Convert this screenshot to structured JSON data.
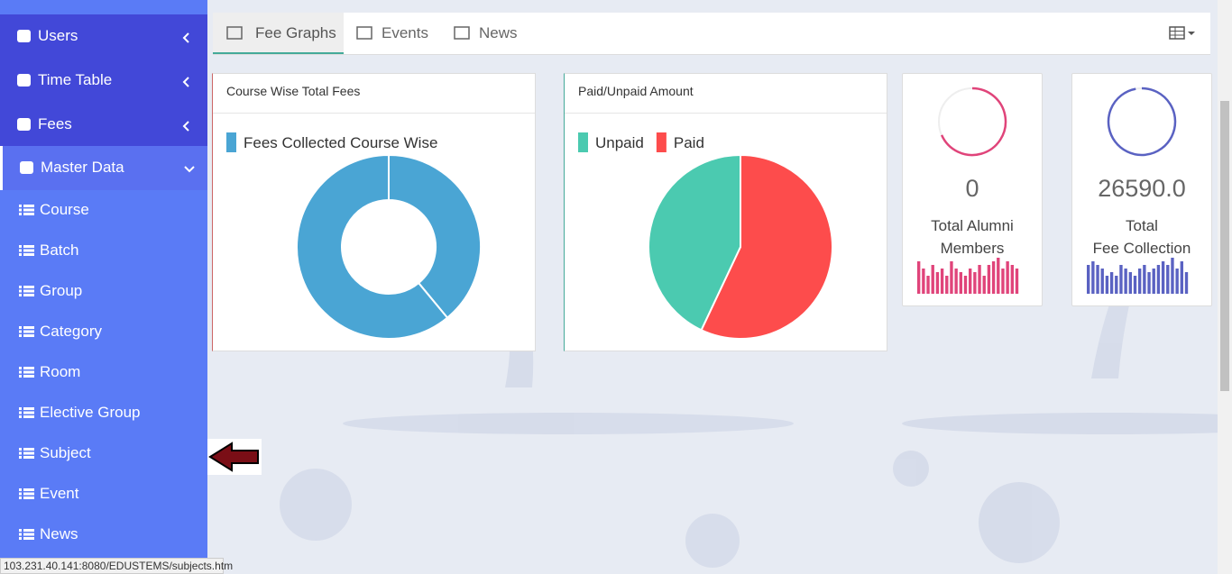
{
  "sidebar": {
    "menu": [
      "Users",
      "Time Table",
      "Fees",
      "Master Data"
    ],
    "submenu": [
      "Course",
      "Batch",
      "Group",
      "Category",
      "Room",
      "Elective Group",
      "Subject",
      "Event",
      "News"
    ]
  },
  "tabs": [
    "Fee Graphs",
    "Events",
    "News"
  ],
  "panels": [
    {
      "title": "Course Wise Total Fees",
      "chart_data": {
        "type": "donut",
        "series": [
          {
            "name": "Fees Collected Course Wise",
            "color": "#4aa5d4",
            "values": [
              39,
              61
            ]
          }
        ]
      }
    },
    {
      "title": "Paid/Unpaid Amount",
      "chart_data": {
        "type": "pie",
        "categories": [
          "Unpaid",
          "Paid"
        ],
        "colors": [
          "#4bcab0",
          "#fd4c4c"
        ],
        "values": [
          43,
          57
        ]
      }
    }
  ],
  "stats": [
    {
      "value": "0",
      "label": "Total Alumni Members",
      "color": "#e0447a",
      "bars": [
        9,
        7,
        5,
        8,
        6,
        7,
        5,
        9,
        7,
        6,
        5,
        7,
        6,
        8,
        5,
        8,
        9,
        10,
        7,
        9,
        8,
        7
      ]
    },
    {
      "value": "26590.0",
      "label_lines": [
        "Total",
        "Fee Collection"
      ],
      "color": "#5a62c2",
      "bars": [
        8,
        9,
        8,
        7,
        5,
        6,
        5,
        8,
        7,
        6,
        5,
        7,
        8,
        6,
        7,
        8,
        9,
        8,
        10,
        7,
        9,
        6
      ]
    }
  ],
  "status_bar": "103.231.40.141:8080/EDUSTEMS/subjects.htm"
}
